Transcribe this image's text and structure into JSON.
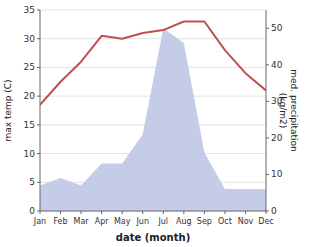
{
  "chart_data": {
    "type": "line",
    "categories": [
      "Jan",
      "Feb",
      "Mar",
      "Apr",
      "May",
      "Jun",
      "Jul",
      "Aug",
      "Sep",
      "Oct",
      "Nov",
      "Dec"
    ],
    "xlabel": "date (month)",
    "ylabel": "max temp (C)",
    "y2label": "med. precipitation\n(kg/m2)",
    "series": [
      {
        "type": "area",
        "axis": "y2",
        "color": "#c5cce8",
        "values": [
          7.0,
          9.0,
          7.0,
          13.0,
          13.0,
          21.0,
          50.0,
          46.0,
          16.0,
          6.0,
          6.0,
          6.0
        ]
      },
      {
        "type": "line",
        "color": "#c0504d",
        "values": [
          18.5,
          22.5,
          26.0,
          30.5,
          30.0,
          31.0,
          31.5,
          33.0,
          33.0,
          28.0,
          24.0,
          21.0
        ]
      }
    ],
    "ylim": [
      0,
      35
    ],
    "yticks": [
      0,
      5,
      10,
      15,
      20,
      25,
      30,
      35
    ],
    "y2lim": [
      0,
      55
    ],
    "y2ticks": [
      0,
      10,
      20,
      30,
      40,
      50
    ],
    "grid": true
  }
}
